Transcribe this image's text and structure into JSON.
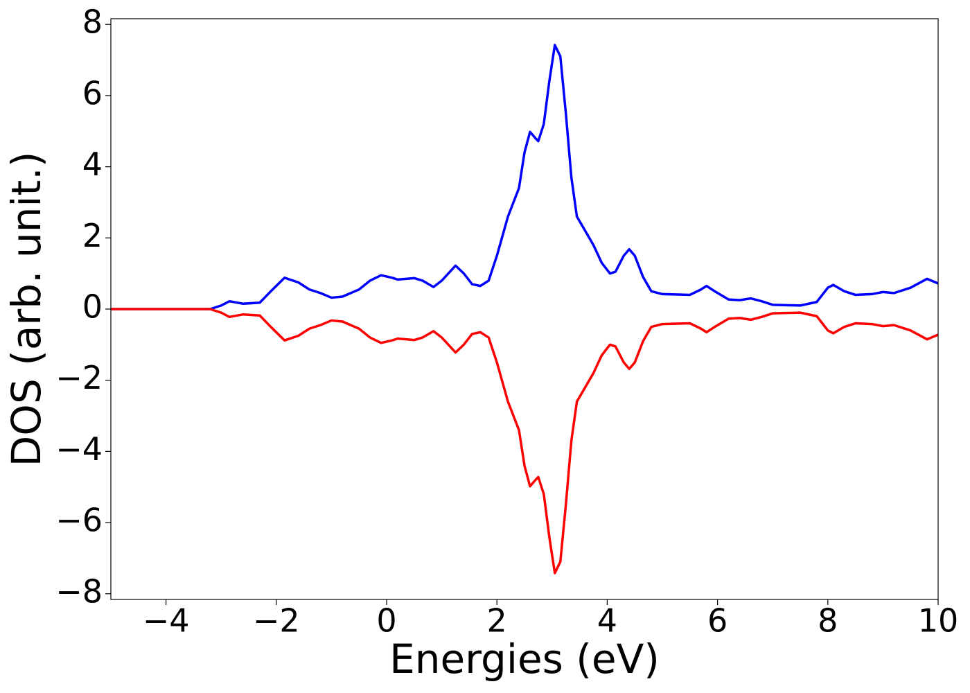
{
  "chart_data": {
    "type": "line",
    "xlabel": "Energies (eV)",
    "ylabel": "DOS (arb. unit.)",
    "xlim": [
      -5,
      10
    ],
    "ylim": [
      -8.16,
      8.16
    ],
    "xticks": [
      {
        "value": -4,
        "label": "−4"
      },
      {
        "value": -2,
        "label": "−2"
      },
      0,
      2,
      4,
      6,
      8,
      10
    ],
    "yticks": [
      {
        "value": -8,
        "label": "−8"
      },
      {
        "value": -6,
        "label": "−6"
      },
      {
        "value": -4,
        "label": "−4"
      },
      {
        "value": -2,
        "label": "−2"
      },
      0,
      2,
      4,
      6,
      8
    ],
    "x": [
      -5,
      -4,
      -3.2,
      -3,
      -2.85,
      -2.6,
      -2.3,
      -2.1,
      -1.85,
      -1.6,
      -1.4,
      -1.2,
      -1,
      -0.8,
      -0.5,
      -0.3,
      -0.1,
      0.1,
      0.2,
      0.5,
      0.65,
      0.85,
      1,
      1.25,
      1.4,
      1.55,
      1.7,
      1.85,
      2,
      2.2,
      2.4,
      2.5,
      2.6,
      2.7,
      2.75,
      2.85,
      2.95,
      3.05,
      3.15,
      3.25,
      3.35,
      3.45,
      3.6,
      3.75,
      3.9,
      4.05,
      4.15,
      4.3,
      4.4,
      4.5,
      4.65,
      4.8,
      5,
      5.5,
      5.7,
      5.8,
      5.95,
      6.2,
      6.4,
      6.6,
      6.8,
      7,
      7.5,
      7.8,
      8,
      8.1,
      8.3,
      8.5,
      8.8,
      9,
      9.2,
      9.5,
      9.8,
      10
    ],
    "series": [
      {
        "color": "#0000ff",
        "values": [
          0,
          0,
          0,
          0.1,
          0.22,
          0.15,
          0.18,
          0.5,
          0.88,
          0.75,
          0.55,
          0.45,
          0.32,
          0.35,
          0.55,
          0.8,
          0.95,
          0.88,
          0.83,
          0.87,
          0.8,
          0.62,
          0.8,
          1.22,
          1.0,
          0.7,
          0.65,
          0.8,
          1.5,
          2.6,
          3.4,
          4.4,
          4.98,
          4.8,
          4.72,
          5.2,
          6.4,
          7.42,
          7.1,
          5.5,
          3.7,
          2.6,
          2.2,
          1.8,
          1.3,
          1.0,
          1.05,
          1.5,
          1.68,
          1.5,
          0.9,
          0.5,
          0.42,
          0.4,
          0.55,
          0.65,
          0.5,
          0.27,
          0.25,
          0.3,
          0.22,
          0.12,
          0.1,
          0.2,
          0.6,
          0.68,
          0.5,
          0.4,
          0.42,
          0.48,
          0.45,
          0.6,
          0.85,
          0.72
        ]
      },
      {
        "color": "#ff0000",
        "values": [
          0,
          0,
          0,
          -0.1,
          -0.22,
          -0.15,
          -0.18,
          -0.5,
          -0.88,
          -0.75,
          -0.55,
          -0.45,
          -0.32,
          -0.35,
          -0.55,
          -0.8,
          -0.95,
          -0.88,
          -0.83,
          -0.87,
          -0.8,
          -0.62,
          -0.8,
          -1.22,
          -1.0,
          -0.7,
          -0.65,
          -0.8,
          -1.5,
          -2.6,
          -3.4,
          -4.4,
          -4.98,
          -4.8,
          -4.72,
          -5.2,
          -6.4,
          -7.42,
          -7.1,
          -5.5,
          -3.7,
          -2.6,
          -2.2,
          -1.8,
          -1.3,
          -1.0,
          -1.05,
          -1.5,
          -1.68,
          -1.5,
          -0.9,
          -0.5,
          -0.42,
          -0.4,
          -0.55,
          -0.65,
          -0.5,
          -0.27,
          -0.25,
          -0.3,
          -0.22,
          -0.12,
          -0.1,
          -0.2,
          -0.6,
          -0.68,
          -0.5,
          -0.4,
          -0.42,
          -0.48,
          -0.45,
          -0.6,
          -0.85,
          -0.72
        ]
      }
    ]
  }
}
